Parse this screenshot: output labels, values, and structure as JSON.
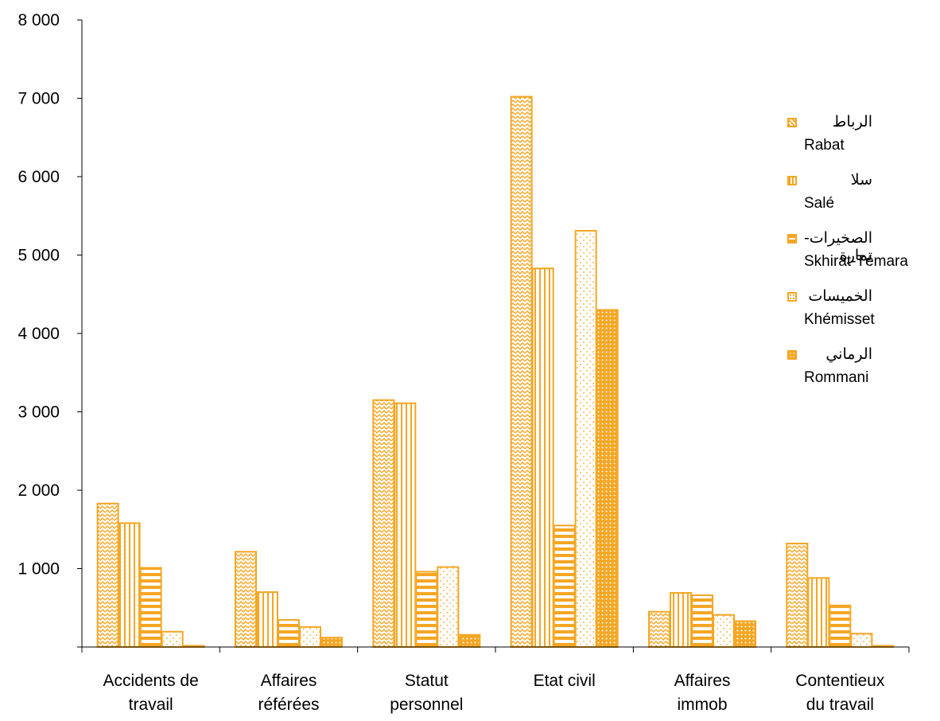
{
  "chart_data": {
    "type": "bar",
    "title": "",
    "xlabel": "",
    "ylabel": "",
    "ylim": [
      0,
      8000
    ],
    "yticks": [
      "1 000",
      "2 000",
      "3 000",
      "4 000",
      "5 000",
      "6 000",
      "7 000",
      "8 000"
    ],
    "categories": [
      [
        "Accidents de",
        "travail"
      ],
      [
        "Affaires",
        "référées"
      ],
      [
        "Statut",
        "personnel"
      ],
      [
        "Etat civil"
      ],
      [
        "Affaires",
        "immob"
      ],
      [
        "Contentieux",
        "du travail"
      ]
    ],
    "series": [
      {
        "name": "Rabat",
        "label_ar": "الرباط",
        "pattern": "zigzag",
        "values": [
          1830,
          1215,
          3150,
          7020,
          450,
          1320
        ]
      },
      {
        "name": "Salé",
        "label_ar": "سلا",
        "pattern": "vertical",
        "values": [
          1580,
          700,
          3110,
          4830,
          690,
          880
        ]
      },
      {
        "name": "Skhirat-Témara",
        "label_ar": "الصخيرات-تمارة",
        "pattern": "horizontal",
        "values": [
          1010,
          345,
          960,
          1550,
          660,
          530
        ]
      },
      {
        "name": "Khémisset",
        "label_ar": "الخميسات",
        "pattern": "dots",
        "values": [
          195,
          255,
          1020,
          5310,
          410,
          170
        ]
      },
      {
        "name": "Rommani",
        "label_ar": "الرماني",
        "pattern": "dense-dots",
        "values": [
          15,
          120,
          155,
          4300,
          330,
          15
        ]
      }
    ],
    "grid": false,
    "legend_position": "right",
    "colors": {
      "bar": "#f5a623",
      "axis": "#000000"
    }
  }
}
